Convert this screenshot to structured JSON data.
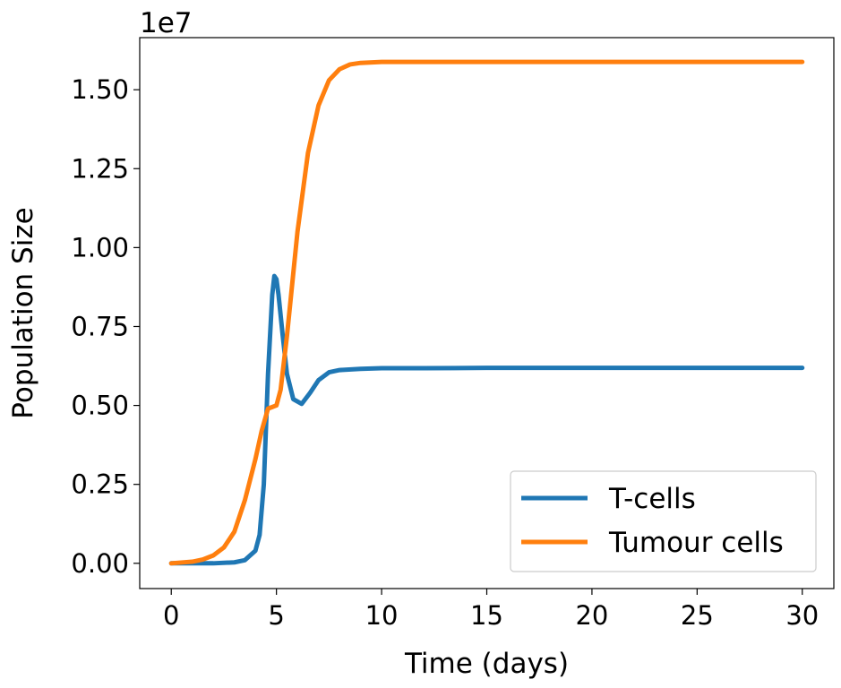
{
  "chart_data": {
    "type": "line",
    "xlabel": "Time (days)",
    "ylabel": "Population Size",
    "y_multiplier_label": "1e7",
    "xlim": [
      -1.5,
      31.5
    ],
    "ylim": [
      -0.08,
      1.665
    ],
    "x_ticks": [
      0,
      5,
      10,
      15,
      20,
      25,
      30
    ],
    "x_tick_labels": [
      "0",
      "5",
      "10",
      "15",
      "20",
      "25",
      "30"
    ],
    "y_ticks": [
      0.0,
      0.25,
      0.5,
      0.75,
      1.0,
      1.25,
      1.5
    ],
    "y_tick_labels": [
      "0.00",
      "0.25",
      "0.50",
      "0.75",
      "1.00",
      "1.25",
      "1.50"
    ],
    "grid": false,
    "legend_position": "lower right",
    "series": [
      {
        "name": "T-cells",
        "color": "#1f77b4",
        "x": [
          0,
          1,
          2,
          3,
          3.5,
          4,
          4.2,
          4.4,
          4.6,
          4.8,
          4.9,
          5.0,
          5.1,
          5.3,
          5.5,
          5.8,
          6.2,
          6.6,
          7.0,
          7.5,
          8,
          9,
          10,
          12,
          15,
          20,
          25,
          30
        ],
        "values": [
          0.0,
          0.0,
          0.0,
          0.003,
          0.01,
          0.04,
          0.09,
          0.25,
          0.6,
          0.85,
          0.91,
          0.9,
          0.85,
          0.72,
          0.6,
          0.52,
          0.505,
          0.54,
          0.58,
          0.605,
          0.612,
          0.616,
          0.618,
          0.618,
          0.619,
          0.619,
          0.619,
          0.619
        ]
      },
      {
        "name": "Tumour cells",
        "color": "#ff7f0e",
        "x": [
          0,
          1,
          1.5,
          2,
          2.5,
          3,
          3.5,
          4,
          4.3,
          4.6,
          4.8,
          5.0,
          5.2,
          5.5,
          6.0,
          6.5,
          7.0,
          7.5,
          8,
          8.5,
          9,
          10,
          12,
          15,
          20,
          25,
          30
        ],
        "values": [
          0.0,
          0.005,
          0.012,
          0.025,
          0.05,
          0.1,
          0.2,
          0.33,
          0.42,
          0.49,
          0.495,
          0.5,
          0.55,
          0.72,
          1.05,
          1.3,
          1.45,
          1.53,
          1.565,
          1.58,
          1.585,
          1.588,
          1.588,
          1.588,
          1.588,
          1.588,
          1.588
        ]
      }
    ]
  }
}
